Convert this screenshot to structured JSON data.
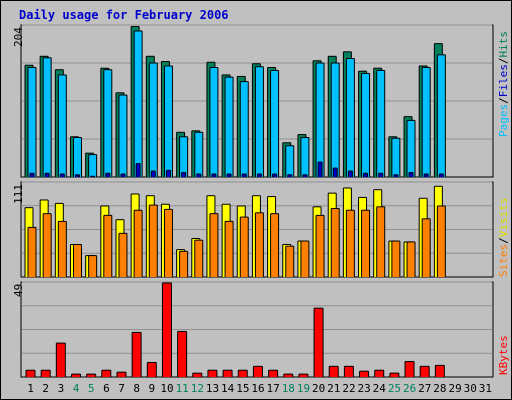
{
  "title": "Daily usage for February 2006",
  "colors": {
    "hits": "#00805c",
    "files": "#00c0ff",
    "pages": "#0000cc",
    "visits": "#ffff00",
    "sites": "#ff8000",
    "kbytes": "#ff0000",
    "weekend": "#00805c",
    "weekday": "#000000",
    "background": "#c0c0c0"
  },
  "panels": {
    "top": {
      "ymax": "204",
      "legend": [
        "Pages",
        "/",
        "Files",
        "/",
        "Hits"
      ]
    },
    "middle": {
      "ymax": "111",
      "legend": [
        "Sites",
        "/",
        "Visits"
      ]
    },
    "bottom": {
      "ymax": "49",
      "legend": [
        "KBytes"
      ]
    }
  },
  "chart_data": {
    "type": "bar",
    "categories": [
      "1",
      "2",
      "3",
      "4",
      "5",
      "6",
      "7",
      "8",
      "9",
      "10",
      "11",
      "12",
      "13",
      "14",
      "15",
      "16",
      "17",
      "18",
      "19",
      "20",
      "21",
      "22",
      "23",
      "24",
      "25",
      "26",
      "27",
      "28",
      "29",
      "30",
      "31"
    ],
    "weekend_days": [
      "4",
      "5",
      "11",
      "12",
      "18",
      "19",
      "25",
      "26"
    ],
    "panels": [
      {
        "ylim": [
          0,
          204
        ],
        "series": [
          {
            "name": "Hits",
            "color": "#00805c",
            "values": [
              150,
              162,
              144,
              54,
              32,
              146,
              113,
              202,
              162,
              155,
              60,
              62,
              154,
              137,
              135,
              152,
              147,
              46,
              57,
              156,
              162,
              168,
              142,
              146,
              54,
              81,
              149,
              179,
              0,
              0,
              0
            ]
          },
          {
            "name": "Files",
            "color": "#00c0ff",
            "values": [
              147,
              160,
              137,
              53,
              30,
              144,
              110,
              196,
              153,
              149,
              54,
              60,
              147,
              134,
              128,
              148,
              143,
              42,
              53,
              153,
              153,
              159,
              139,
              143,
              52,
              76,
              147,
              164,
              0,
              0,
              0
            ]
          },
          {
            "name": "Pages",
            "color": "#0000cc",
            "values": [
              5,
              5,
              4,
              3,
              1,
              5,
              4,
              18,
              8,
              9,
              6,
              4,
              4,
              4,
              4,
              4,
              4,
              3,
              3,
              20,
              12,
              8,
              5,
              5,
              3,
              6,
              4,
              4,
              0,
              0,
              0
            ]
          }
        ]
      },
      {
        "ylim": [
          0,
          111
        ],
        "series": [
          {
            "name": "Visits",
            "color": "#ffff00",
            "values": [
              81,
              90,
              86,
              38,
              25,
              83,
              67,
              97,
              95,
              85,
              32,
              45,
              95,
              85,
              83,
              95,
              94,
              38,
              42,
              82,
              98,
              104,
              93,
              102,
              42,
              41,
              92,
              106,
              0,
              0,
              0
            ]
          },
          {
            "name": "Sites",
            "color": "#ff8000",
            "values": [
              58,
              74,
              65,
              38,
              25,
              72,
              51,
              78,
              84,
              79,
              30,
              43,
              74,
              65,
              70,
              75,
              74,
              36,
              42,
              72,
              80,
              78,
              78,
              82,
              42,
              41,
              68,
              83,
              0,
              0,
              0
            ]
          }
        ]
      },
      {
        "ylim": [
          0,
          49
        ],
        "series": [
          {
            "name": "KBytes",
            "color": "#ff0000",
            "values": [
              3.5,
              3.5,
              17.5,
              1.5,
              1.5,
              3.5,
              2.5,
              23,
              7.5,
              48.5,
              23.5,
              2,
              3.5,
              3.5,
              3.5,
              5.5,
              3.5,
              1.5,
              1.5,
              35.5,
              5.5,
              5.5,
              3,
              3.5,
              2,
              8,
              5.5,
              6,
              0,
              0,
              0
            ]
          }
        ]
      }
    ]
  }
}
